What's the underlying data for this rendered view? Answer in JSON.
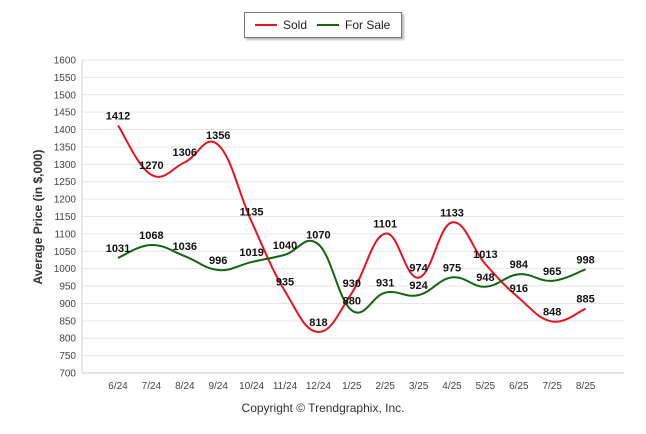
{
  "chart_data": {
    "type": "line",
    "ylabel": "Average Price (in $,000)",
    "ylim": [
      700,
      1600
    ],
    "ytick_step": 50,
    "grid": true,
    "legend_position": "top-center",
    "categories": [
      "6/24",
      "7/24",
      "8/24",
      "9/24",
      "10/24",
      "11/24",
      "12/24",
      "1/25",
      "2/25",
      "3/25",
      "4/25",
      "5/25",
      "6/25",
      "7/25",
      "8/25"
    ],
    "series": [
      {
        "name": "Sold",
        "color": "#e8131b",
        "values": [
          1412,
          1270,
          1306,
          1356,
          1135,
          935,
          818,
          930,
          1101,
          974,
          1133,
          1013,
          916,
          848,
          885
        ]
      },
      {
        "name": "For Sale",
        "color": "#11650e",
        "values": [
          1031,
          1068,
          1036,
          996,
          1019,
          1040,
          1070,
          880,
          931,
          924,
          975,
          948,
          984,
          965,
          998
        ]
      }
    ]
  },
  "footer": {
    "copyright": "Copyright © Trendgraphix, Inc."
  }
}
